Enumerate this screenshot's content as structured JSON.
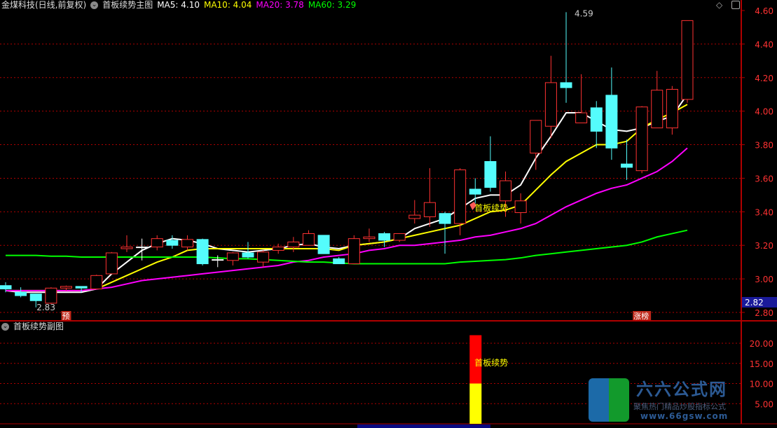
{
  "header": {
    "stock": "金煤科技(日线,前复权)",
    "indicator": "首板续势主图",
    "ma5": "MA5: 4.10",
    "ma10": "MA10: 4.04",
    "ma20": "MA20: 3.78",
    "ma60": "MA60: 3.29"
  },
  "sub_header": "首板续势副图",
  "colors": {
    "up": "#ff3232",
    "down": "#54fcfc",
    "ma5": "#ffffff",
    "ma10": "#ffff00",
    "ma20": "#ff00ff",
    "ma60": "#00ff00",
    "grid": "#b00000",
    "axis": "#ff3232"
  },
  "icons": [
    "collapse-circle-icon",
    "diamond-icon",
    "panel-toggle-icon",
    "gem-signal-icon"
  ],
  "logo": {
    "title": "六六公式网",
    "subtitle": "聚焦热门精品炒股指标公式",
    "url": "www.66gsw.com"
  },
  "chart_data": [
    {
      "type": "candlestick",
      "y_ticks": [
        "4.60",
        "4.40",
        "4.20",
        "4.00",
        "3.80",
        "3.60",
        "3.40",
        "3.20",
        "3.00",
        "2.80"
      ],
      "ylim": [
        2.8,
        4.6
      ],
      "grid": true,
      "candles": [
        [
          2.96,
          2.94,
          2.98,
          2.92
        ],
        [
          2.92,
          2.9,
          2.95,
          2.89
        ],
        [
          2.91,
          2.87,
          2.91,
          2.83
        ],
        [
          2.855,
          2.945,
          2.95,
          2.85
        ],
        [
          2.945,
          2.955,
          2.96,
          2.93
        ],
        [
          2.955,
          2.945,
          2.955,
          2.92
        ],
        [
          2.94,
          3.02,
          3.025,
          2.94
        ],
        [
          3.03,
          3.155,
          3.16,
          3.03
        ],
        [
          3.18,
          3.19,
          3.26,
          3.16
        ],
        [
          3.19,
          3.19,
          3.24,
          3.11
        ],
        [
          3.19,
          3.24,
          3.26,
          3.17
        ],
        [
          3.23,
          3.2,
          3.26,
          3.18
        ],
        [
          3.19,
          3.235,
          3.26,
          3.17
        ],
        [
          3.235,
          3.09,
          3.24,
          3.08
        ],
        [
          3.115,
          3.115,
          3.14,
          3.07
        ],
        [
          3.11,
          3.155,
          3.16,
          3.08
        ],
        [
          3.155,
          3.13,
          3.22,
          3.12
        ],
        [
          3.1,
          3.16,
          3.17,
          3.07
        ],
        [
          3.17,
          3.19,
          3.21,
          3.15
        ],
        [
          3.19,
          3.22,
          3.25,
          3.16
        ],
        [
          3.2,
          3.27,
          3.29,
          3.2
        ],
        [
          3.26,
          3.15,
          3.26,
          3.15
        ],
        [
          3.12,
          3.09,
          3.13,
          3.09
        ],
        [
          3.09,
          3.24,
          3.26,
          3.09
        ],
        [
          3.24,
          3.25,
          3.3,
          3.22
        ],
        [
          3.27,
          3.23,
          3.28,
          3.19
        ],
        [
          3.23,
          3.27,
          3.27,
          3.22
        ],
        [
          3.36,
          3.38,
          3.47,
          3.33
        ],
        [
          3.37,
          3.455,
          3.66,
          3.31
        ],
        [
          3.39,
          3.33,
          3.4,
          3.15
        ],
        [
          3.33,
          3.65,
          3.66,
          3.26
        ],
        [
          3.535,
          3.505,
          3.6,
          3.45
        ],
        [
          3.7,
          3.545,
          3.85,
          3.52
        ],
        [
          3.465,
          3.585,
          3.64,
          3.37
        ],
        [
          3.395,
          3.465,
          3.51,
          3.33
        ],
        [
          3.75,
          3.945,
          3.945,
          3.65
        ],
        [
          3.91,
          4.17,
          4.33,
          3.84
        ],
        [
          4.17,
          4.14,
          4.59,
          4.05
        ],
        [
          3.93,
          3.99,
          4.22,
          3.93
        ],
        [
          4.02,
          3.88,
          4.06,
          3.78
        ],
        [
          4.095,
          3.78,
          4.26,
          3.71
        ],
        [
          3.685,
          3.665,
          3.83,
          3.59
        ],
        [
          3.645,
          4.025,
          4.03,
          3.63
        ],
        [
          3.9,
          4.125,
          4.24,
          3.91
        ],
        [
          3.9,
          4.13,
          4.15,
          3.86
        ],
        [
          4.07,
          4.54,
          4.54,
          4.05
        ]
      ],
      "candle_fields": [
        "open",
        "close",
        "high",
        "low"
      ],
      "series": [
        {
          "name": "MA5",
          "values": [
            2.93,
            2.92,
            2.92,
            2.92,
            2.92,
            2.92,
            2.94,
            3.03,
            3.1,
            3.17,
            3.21,
            3.24,
            3.23,
            3.21,
            3.18,
            3.17,
            3.16,
            3.17,
            3.18,
            3.2,
            3.21,
            3.19,
            3.18,
            3.2,
            3.21,
            3.22,
            3.24,
            3.3,
            3.33,
            3.36,
            3.42,
            3.48,
            3.5,
            3.5,
            3.56,
            3.72,
            3.85,
            3.99,
            3.99,
            3.94,
            3.89,
            3.88,
            3.9,
            3.94,
            3.97,
            4.1
          ]
        },
        {
          "name": "MA10",
          "values": [
            2.93,
            2.93,
            2.93,
            2.93,
            2.93,
            2.93,
            2.94,
            2.98,
            3.02,
            3.06,
            3.1,
            3.13,
            3.17,
            3.18,
            3.18,
            3.18,
            3.18,
            3.18,
            3.18,
            3.18,
            3.18,
            3.18,
            3.17,
            3.2,
            3.21,
            3.22,
            3.24,
            3.26,
            3.28,
            3.3,
            3.32,
            3.36,
            3.4,
            3.41,
            3.44,
            3.53,
            3.62,
            3.7,
            3.75,
            3.8,
            3.8,
            3.82,
            3.9,
            3.95,
            3.99,
            4.04
          ]
        },
        {
          "name": "MA20",
          "values": [
            2.93,
            2.93,
            2.93,
            2.93,
            2.93,
            2.93,
            2.94,
            2.95,
            2.97,
            2.99,
            3.0,
            3.01,
            3.02,
            3.03,
            3.04,
            3.05,
            3.06,
            3.07,
            3.08,
            3.1,
            3.11,
            3.13,
            3.14,
            3.15,
            3.17,
            3.18,
            3.2,
            3.2,
            3.21,
            3.22,
            3.23,
            3.25,
            3.26,
            3.28,
            3.3,
            3.33,
            3.38,
            3.43,
            3.47,
            3.51,
            3.54,
            3.56,
            3.6,
            3.64,
            3.7,
            3.78
          ]
        },
        {
          "name": "MA60",
          "values": [
            3.14,
            3.14,
            3.14,
            3.135,
            3.135,
            3.13,
            3.13,
            3.13,
            3.13,
            3.13,
            3.13,
            3.13,
            3.13,
            3.13,
            3.125,
            3.12,
            3.12,
            3.115,
            3.11,
            3.105,
            3.1,
            3.1,
            3.095,
            3.09,
            3.09,
            3.09,
            3.09,
            3.09,
            3.09,
            3.09,
            3.1,
            3.105,
            3.11,
            3.115,
            3.125,
            3.14,
            3.15,
            3.16,
            3.17,
            3.18,
            3.19,
            3.2,
            3.22,
            3.25,
            3.27,
            3.29
          ]
        }
      ],
      "annotations": {
        "high_label": "4.59",
        "high_index": 37,
        "low_label": "2.83",
        "low_index": 2,
        "signal_label": "首板续势",
        "signal_index": 31,
        "marker_pre": "预",
        "marker_pre_index": 4,
        "marker_rank": "涨榜",
        "marker_rank_index": 42,
        "last_price_tag": "2.82"
      }
    },
    {
      "type": "bar",
      "y_ticks": [
        "20.00",
        "15.00",
        "10.00",
        "5.00"
      ],
      "ylim": [
        0,
        25
      ],
      "grid": true,
      "bar_index": 31,
      "segments": [
        {
          "color": "#ffff00",
          "from": 0,
          "to": 10
        },
        {
          "color": "#ff0000",
          "from": 10,
          "to": 22
        }
      ],
      "label": "首板续势"
    }
  ]
}
